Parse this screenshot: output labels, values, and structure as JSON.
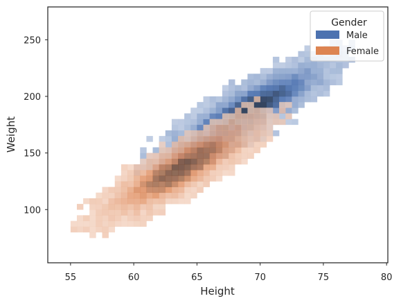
{
  "chart_data": {
    "type": "heatmap",
    "subtype": "bivariate-histogram",
    "title": "",
    "xlabel": "Height",
    "ylabel": "Weight",
    "xlim": [
      53.2,
      80.1
    ],
    "ylim": [
      53.0,
      279.0
    ],
    "xticks": [
      55,
      60,
      65,
      70,
      75,
      80
    ],
    "yticks": [
      100,
      150,
      200,
      250
    ],
    "grid": false,
    "bin_width_x": 0.5,
    "bin_height_y": 5.0,
    "legend": {
      "title": "Gender",
      "placement": "top-right",
      "entries": [
        "Male",
        "Female"
      ]
    },
    "series": [
      {
        "name": "Male",
        "color": "#4c72b0",
        "distribution": {
          "mean_x": 69.0,
          "sd_x": 2.9,
          "mean_y": 187.0,
          "sd_y": 19.8,
          "corr": 0.86,
          "peak": [
            71.5,
            200
          ]
        }
      },
      {
        "name": "Female",
        "color": "#dd8452",
        "distribution": {
          "mean_x": 63.7,
          "sd_x": 2.7,
          "mean_y": 135.9,
          "sd_y": 19.0,
          "corr": 0.85,
          "peak": [
            63.5,
            140
          ]
        }
      }
    ]
  }
}
